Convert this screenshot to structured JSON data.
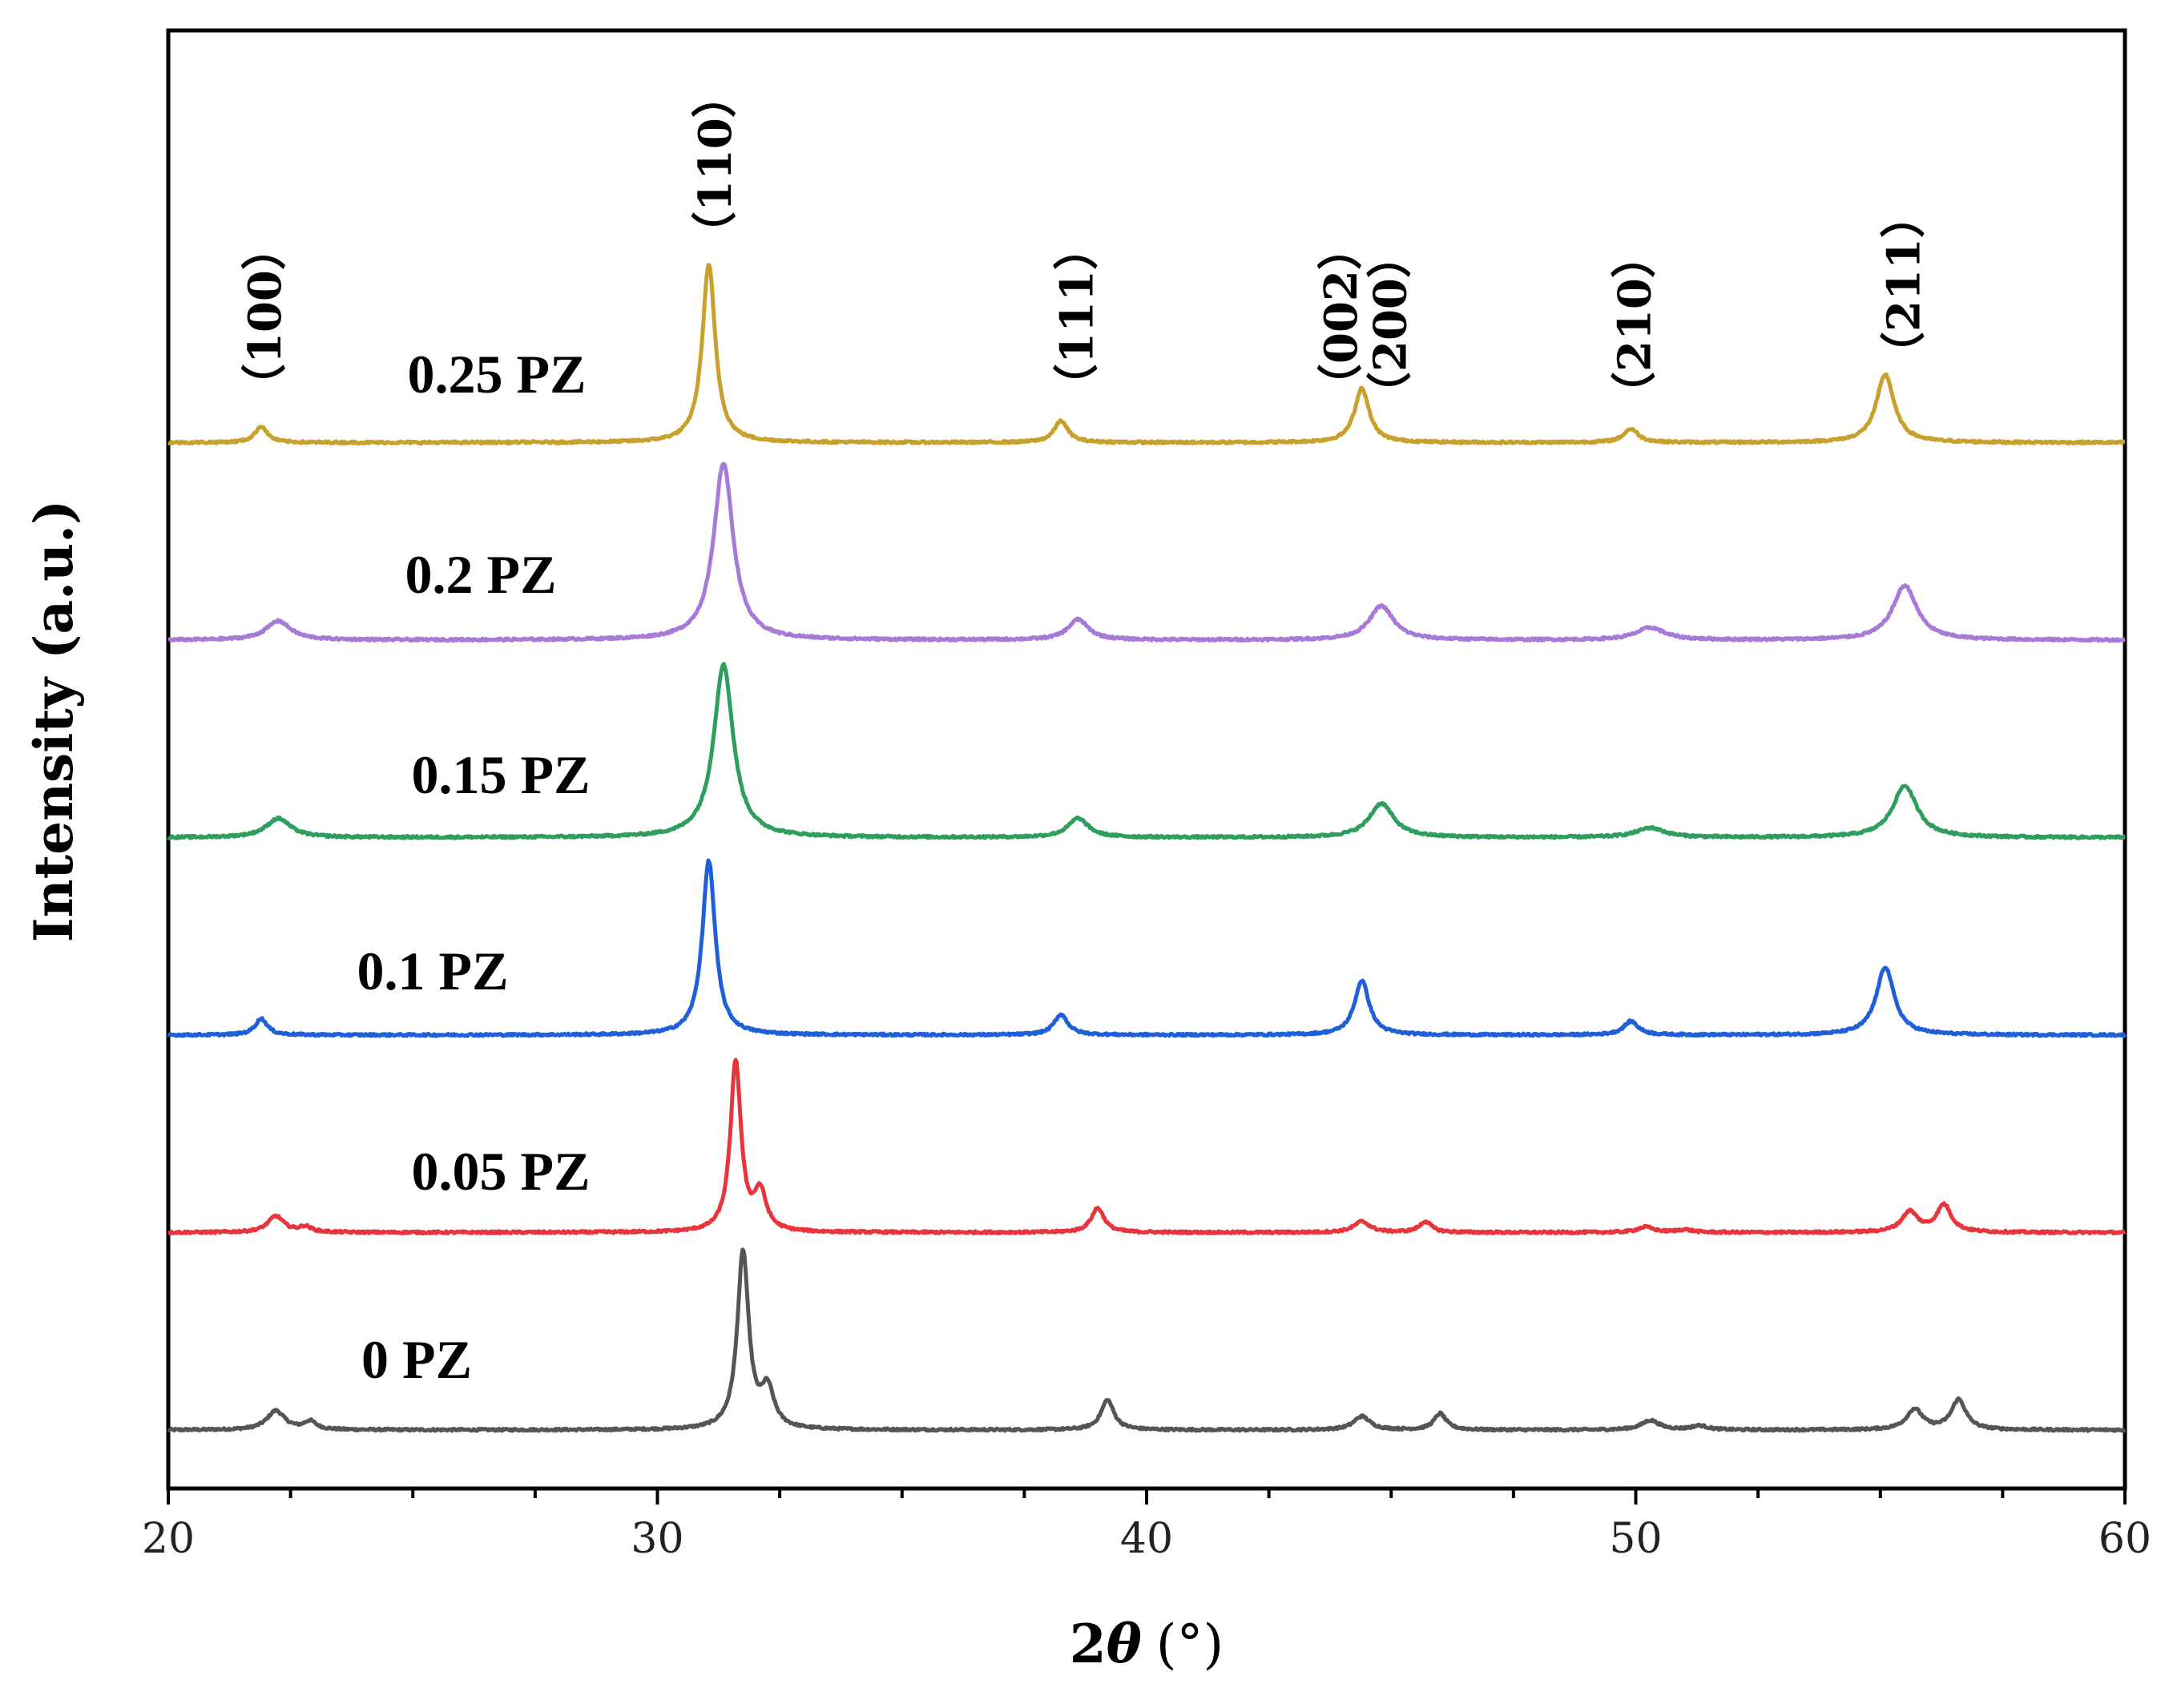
{
  "chart_data": {
    "type": "line",
    "title": "",
    "xlabel_main": "2",
    "xlabel_symbol": "θ",
    "xlabel_unit": "(°)",
    "ylabel": "Intensity (a.u.)",
    "xlim": [
      20,
      60
    ],
    "xticks": [
      20,
      30,
      40,
      50,
      60
    ],
    "xtick_labels": [
      "20",
      "30",
      "40",
      "50",
      "60"
    ],
    "grid": false,
    "units_note": "stacked XRD patterns; intensities in arbitrary units, offset per series",
    "series": [
      {
        "name": "0  PZ",
        "color": "#555555",
        "offset": 0,
        "peak_scale": 1.0,
        "peaks": [
          {
            "x": 22.2,
            "h": 14,
            "w": 0.22
          },
          {
            "x": 22.9,
            "h": 6,
            "w": 0.15
          },
          {
            "x": 31.75,
            "h": 130,
            "w": 0.14
          },
          {
            "x": 32.25,
            "h": 28,
            "w": 0.16
          },
          {
            "x": 39.2,
            "h": 22,
            "w": 0.16
          },
          {
            "x": 44.4,
            "h": 10,
            "w": 0.2
          },
          {
            "x": 46.0,
            "h": 12,
            "w": 0.15
          },
          {
            "x": 50.3,
            "h": 7,
            "w": 0.22
          },
          {
            "x": 51.3,
            "h": 3,
            "w": 0.2
          },
          {
            "x": 55.7,
            "h": 15,
            "w": 0.2
          },
          {
            "x": 56.6,
            "h": 22,
            "w": 0.18
          }
        ]
      },
      {
        "name": "0.05 PZ",
        "color": "#e8353b",
        "offset": 145,
        "peak_scale": 1.0,
        "peaks": [
          {
            "x": 22.2,
            "h": 12,
            "w": 0.2
          },
          {
            "x": 22.8,
            "h": 4,
            "w": 0.15
          },
          {
            "x": 31.6,
            "h": 125,
            "w": 0.13
          },
          {
            "x": 32.1,
            "h": 28,
            "w": 0.15
          },
          {
            "x": 39.0,
            "h": 18,
            "w": 0.16
          },
          {
            "x": 44.4,
            "h": 8,
            "w": 0.2
          },
          {
            "x": 45.7,
            "h": 8,
            "w": 0.15
          },
          {
            "x": 50.2,
            "h": 4,
            "w": 0.2
          },
          {
            "x": 51.0,
            "h": 2,
            "w": 0.2
          },
          {
            "x": 55.6,
            "h": 15,
            "w": 0.2
          },
          {
            "x": 56.3,
            "h": 20,
            "w": 0.18
          }
        ]
      },
      {
        "name": "0.1 PZ",
        "color": "#1f5fd8",
        "offset": 290,
        "peak_scale": 1.0,
        "peaks": [
          {
            "x": 21.9,
            "h": 12,
            "w": 0.15
          },
          {
            "x": 31.05,
            "h": 128,
            "w": 0.16
          },
          {
            "x": 38.25,
            "h": 15,
            "w": 0.17
          },
          {
            "x": 44.4,
            "h": 40,
            "w": 0.18
          },
          {
            "x": 49.9,
            "h": 10,
            "w": 0.18
          },
          {
            "x": 55.1,
            "h": 50,
            "w": 0.22
          }
        ]
      },
      {
        "name": "0.15 PZ",
        "color": "#2e9e5e",
        "offset": 435,
        "peak_scale": 1.0,
        "peaks": [
          {
            "x": 22.25,
            "h": 14,
            "w": 0.3
          },
          {
            "x": 31.35,
            "h": 127,
            "w": 0.24
          },
          {
            "x": 38.6,
            "h": 14,
            "w": 0.25
          },
          {
            "x": 44.8,
            "h": 25,
            "w": 0.3
          },
          {
            "x": 50.3,
            "h": 7,
            "w": 0.35
          },
          {
            "x": 55.5,
            "h": 38,
            "w": 0.3
          }
        ]
      },
      {
        "name": "0.2 PZ",
        "color": "#a77ad8",
        "offset": 580,
        "peak_scale": 1.0,
        "peaks": [
          {
            "x": 22.25,
            "h": 14,
            "w": 0.3
          },
          {
            "x": 31.35,
            "h": 130,
            "w": 0.24
          },
          {
            "x": 38.6,
            "h": 15,
            "w": 0.25
          },
          {
            "x": 44.8,
            "h": 25,
            "w": 0.3
          },
          {
            "x": 50.3,
            "h": 9,
            "w": 0.35
          },
          {
            "x": 55.5,
            "h": 40,
            "w": 0.3
          }
        ]
      },
      {
        "name": "0.25 PZ",
        "color": "#c8a02c",
        "offset": 725,
        "peak_scale": 1.0,
        "peaks": [
          {
            "x": 21.9,
            "h": 12,
            "w": 0.15
          },
          {
            "x": 31.05,
            "h": 131,
            "w": 0.16
          },
          {
            "x": 38.25,
            "h": 16,
            "w": 0.17
          },
          {
            "x": 44.4,
            "h": 40,
            "w": 0.18
          },
          {
            "x": 49.9,
            "h": 10,
            "w": 0.18
          },
          {
            "x": 55.1,
            "h": 50,
            "w": 0.22
          }
        ]
      }
    ],
    "annotations": [
      {
        "text": "（100）",
        "x": 22.0
      },
      {
        "text": "（110）",
        "x": 31.2
      },
      {
        "text": "（111）",
        "x": 38.6
      },
      {
        "text": "（002）",
        "x": 44.0
      },
      {
        "text": "（200）",
        "x": 45.0
      },
      {
        "text": "（210）",
        "x": 50.0
      },
      {
        "text": "（211）",
        "x": 55.5
      }
    ]
  }
}
